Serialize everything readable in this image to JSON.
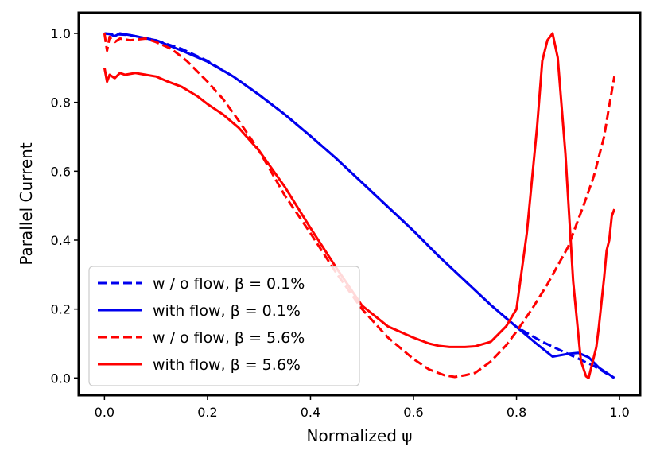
{
  "chart_data": {
    "type": "line",
    "title": "",
    "xlabel": "Normalized ψ",
    "ylabel": "Parallel Current",
    "xlim": [
      -0.05,
      1.04
    ],
    "ylim": [
      -0.05,
      1.06
    ],
    "grid": false,
    "legend_position": "lower-left",
    "x_ticks": [
      0.0,
      0.2,
      0.4,
      0.6,
      0.8,
      1.0
    ],
    "x_tick_labels": [
      "0.0",
      "0.2",
      "0.4",
      "0.6",
      "0.8",
      "1.0"
    ],
    "y_ticks": [
      0.0,
      0.2,
      0.4,
      0.6,
      0.8,
      1.0
    ],
    "y_tick_labels": [
      "0.0",
      "0.2",
      "0.4",
      "0.6",
      "0.8",
      "1.0"
    ],
    "series": [
      {
        "name": "w / o flow, β = 0.1%",
        "label_prefix": "w / o flow, ",
        "label_math": "β = 0.1%",
        "color": "#0000ee",
        "style": "dashed",
        "x": [
          0.0,
          0.02,
          0.05,
          0.1,
          0.15,
          0.2,
          0.25,
          0.3,
          0.35,
          0.4,
          0.45,
          0.5,
          0.55,
          0.6,
          0.65,
          0.7,
          0.75,
          0.8,
          0.85,
          0.9,
          0.95,
          0.99
        ],
        "y": [
          1.0,
          0.998,
          0.995,
          0.98,
          0.955,
          0.92,
          0.875,
          0.822,
          0.765,
          0.702,
          0.637,
          0.567,
          0.497,
          0.427,
          0.352,
          0.282,
          0.212,
          0.148,
          0.105,
          0.07,
          0.035,
          0.0
        ]
      },
      {
        "name": "with flow, β = 0.1%",
        "label_prefix": "with flow, ",
        "label_math": "β = 0.1%",
        "color": "#0000ee",
        "style": "solid",
        "x": [
          0.0,
          0.01,
          0.02,
          0.03,
          0.05,
          0.1,
          0.15,
          0.2,
          0.25,
          0.3,
          0.35,
          0.4,
          0.45,
          0.5,
          0.55,
          0.6,
          0.65,
          0.7,
          0.75,
          0.8,
          0.84,
          0.87,
          0.9,
          0.92,
          0.94,
          0.96,
          0.99
        ],
        "y": [
          1.0,
          0.998,
          0.992,
          1.0,
          0.995,
          0.98,
          0.95,
          0.918,
          0.875,
          0.822,
          0.765,
          0.702,
          0.637,
          0.567,
          0.497,
          0.427,
          0.352,
          0.282,
          0.212,
          0.148,
          0.098,
          0.062,
          0.07,
          0.073,
          0.06,
          0.03,
          0.0
        ]
      },
      {
        "name": "w / o flow, β = 5.6%",
        "label_prefix": "w / o flow, ",
        "label_math": "β = 5.6%",
        "color": "#ff0000",
        "style": "dashed",
        "x": [
          0.0,
          0.005,
          0.01,
          0.015,
          0.02,
          0.03,
          0.05,
          0.08,
          0.1,
          0.13,
          0.16,
          0.2,
          0.23,
          0.26,
          0.3,
          0.35,
          0.4,
          0.45,
          0.5,
          0.55,
          0.6,
          0.63,
          0.66,
          0.68,
          0.7,
          0.72,
          0.75,
          0.78,
          0.8,
          0.83,
          0.86,
          0.9,
          0.93,
          0.95,
          0.97,
          0.98,
          0.99
        ],
        "y": [
          1.0,
          0.95,
          0.99,
          0.98,
          0.975,
          0.985,
          0.98,
          0.985,
          0.975,
          0.955,
          0.92,
          0.86,
          0.81,
          0.748,
          0.66,
          0.53,
          0.42,
          0.305,
          0.2,
          0.118,
          0.055,
          0.025,
          0.008,
          0.003,
          0.008,
          0.015,
          0.048,
          0.095,
          0.135,
          0.2,
          0.272,
          0.38,
          0.5,
          0.585,
          0.7,
          0.79,
          0.875
        ]
      },
      {
        "name": "with flow, β = 5.6%",
        "label_prefix": "with flow, ",
        "label_math": "β = 5.6%",
        "color": "#ff0000",
        "style": "solid",
        "x": [
          0.0,
          0.005,
          0.01,
          0.02,
          0.03,
          0.04,
          0.06,
          0.08,
          0.1,
          0.12,
          0.15,
          0.18,
          0.2,
          0.23,
          0.26,
          0.3,
          0.35,
          0.4,
          0.45,
          0.5,
          0.55,
          0.6,
          0.63,
          0.65,
          0.67,
          0.7,
          0.72,
          0.75,
          0.78,
          0.8,
          0.82,
          0.84,
          0.85,
          0.86,
          0.87,
          0.88,
          0.895,
          0.91,
          0.925,
          0.935,
          0.94,
          0.945,
          0.955,
          0.96,
          0.97,
          0.975,
          0.98,
          0.985,
          0.99
        ],
        "y": [
          0.9,
          0.86,
          0.88,
          0.87,
          0.885,
          0.88,
          0.885,
          0.88,
          0.875,
          0.862,
          0.845,
          0.818,
          0.795,
          0.765,
          0.727,
          0.66,
          0.555,
          0.435,
          0.32,
          0.21,
          0.15,
          0.117,
          0.1,
          0.093,
          0.09,
          0.09,
          0.092,
          0.105,
          0.15,
          0.2,
          0.42,
          0.73,
          0.92,
          0.98,
          1.0,
          0.93,
          0.65,
          0.28,
          0.05,
          0.005,
          0.0,
          0.03,
          0.09,
          0.15,
          0.29,
          0.37,
          0.4,
          0.47,
          0.49
        ]
      }
    ]
  }
}
